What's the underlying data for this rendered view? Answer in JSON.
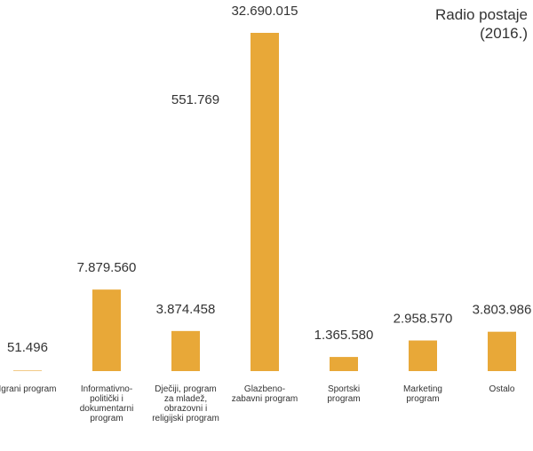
{
  "chart_data": {
    "type": "bar",
    "title": "Radio postaje (2016.)",
    "categories": [
      "Igrani program",
      "Informativno-politički i dokumentarni program",
      "Dječiji, program za mladež, obrazovni i religijski program",
      "Glazbeno-zabavni program",
      "Sportski program",
      "Marketing program",
      "Ostalo"
    ],
    "values": [
      51496,
      7879560,
      3874458,
      32690015,
      1365580,
      2958570,
      3803986
    ],
    "value_labels": [
      "51.496",
      "7.879.560",
      "3.874.458",
      "32.690.015",
      "1.365.580",
      "2.958.570",
      "3.803.986"
    ],
    "annotation": "551.769",
    "color": "#e8a838"
  }
}
